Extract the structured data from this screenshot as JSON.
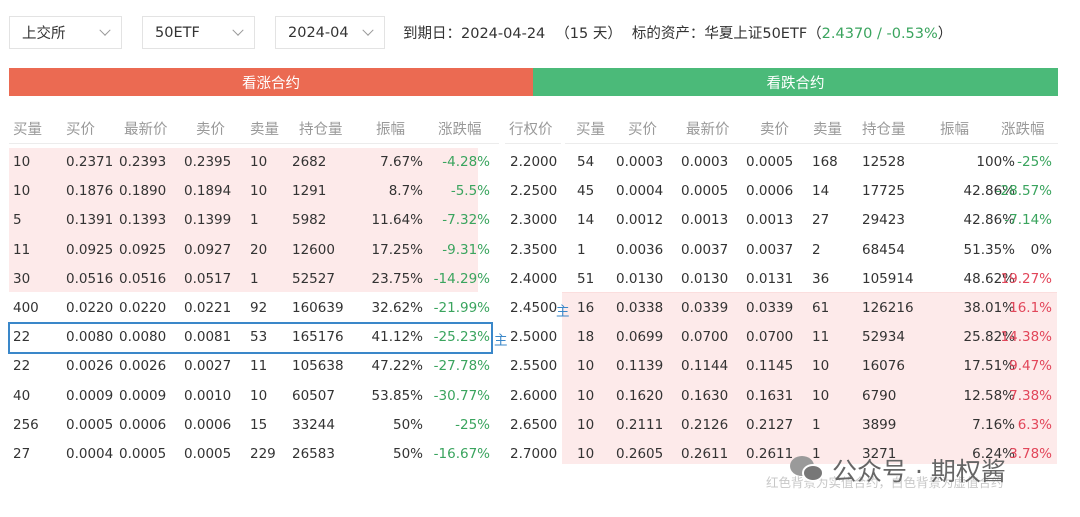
{
  "topbar": {
    "exchange": "上交所",
    "underlying": "50ETF",
    "month": "2024-04",
    "expiry_label": "到期日：",
    "expiry_date": "2024-04-24",
    "days_left": "（15 天）",
    "asset_label": "标的资产：",
    "asset_name": "华夏上证50ETF",
    "asset_quote_open": "（",
    "asset_quote": "2.4370 / -0.53%",
    "asset_quote_close": "）"
  },
  "colors": {
    "call": "#eb6a52",
    "put": "#4bba79",
    "up": "#e2465a",
    "down": "#3aa45e",
    "highlight": "#3a87c9",
    "itm_bg": "#fdeaea"
  },
  "sections": {
    "call": "看涨合约",
    "put": "看跌合约"
  },
  "columns": {
    "call": [
      "买量",
      "买价",
      "最新价",
      "卖价",
      "卖量",
      "持仓量",
      "振幅",
      "涨跌幅"
    ],
    "strike": "行权价",
    "put": [
      "买量",
      "买价",
      "最新价",
      "卖价",
      "卖量",
      "持仓量",
      "振幅",
      "涨跌幅"
    ]
  },
  "rows": [
    {
      "call": [
        "10",
        "0.2371",
        "0.2393",
        "0.2395",
        "10",
        "2682",
        "7.67%",
        "-4.28%"
      ],
      "strike": "2.2000",
      "put": [
        "54",
        "0.0003",
        "0.0003",
        "0.0005",
        "168",
        "12528",
        "100%",
        "-25%"
      ]
    },
    {
      "call": [
        "10",
        "0.1876",
        "0.1890",
        "0.1894",
        "10",
        "1291",
        "8.7%",
        "-5.5%"
      ],
      "strike": "2.2500",
      "put": [
        "45",
        "0.0004",
        "0.0005",
        "0.0006",
        "14",
        "17725",
        "42.86%",
        "-28.57%"
      ]
    },
    {
      "call": [
        "5",
        "0.1391",
        "0.1393",
        "0.1399",
        "1",
        "5982",
        "11.64%",
        "-7.32%"
      ],
      "strike": "2.3000",
      "put": [
        "14",
        "0.0012",
        "0.0013",
        "0.0013",
        "27",
        "29423",
        "42.86%",
        "-7.14%"
      ]
    },
    {
      "call": [
        "11",
        "0.0925",
        "0.0925",
        "0.0927",
        "20",
        "12600",
        "17.25%",
        "-9.31%"
      ],
      "strike": "2.3500",
      "put": [
        "1",
        "0.0036",
        "0.0037",
        "0.0037",
        "2",
        "68454",
        "51.35%",
        "0%"
      ]
    },
    {
      "call": [
        "30",
        "0.0516",
        "0.0516",
        "0.0517",
        "1",
        "52527",
        "23.75%",
        "-14.29%"
      ],
      "strike": "2.4000",
      "put": [
        "51",
        "0.0130",
        "0.0130",
        "0.0131",
        "36",
        "105914",
        "48.62%",
        "19.27%"
      ]
    },
    {
      "call": [
        "400",
        "0.0220",
        "0.0220",
        "0.0221",
        "92",
        "160639",
        "32.62%",
        "-21.99%"
      ],
      "strike": "2.4500",
      "strike_tag": "主",
      "put": [
        "16",
        "0.0338",
        "0.0339",
        "0.0339",
        "61",
        "126216",
        "38.01%",
        "16.1%"
      ]
    },
    {
      "call": [
        "22",
        "0.0080",
        "0.0080",
        "0.0081",
        "53",
        "165176",
        "41.12%",
        "-25.23%"
      ],
      "strike": "2.5000",
      "strike_tag_left": "主",
      "put": [
        "18",
        "0.0699",
        "0.0700",
        "0.0700",
        "11",
        "52934",
        "25.82%",
        "14.38%"
      ]
    },
    {
      "call": [
        "22",
        "0.0026",
        "0.0026",
        "0.0027",
        "11",
        "105638",
        "47.22%",
        "-27.78%"
      ],
      "strike": "2.5500",
      "put": [
        "10",
        "0.1139",
        "0.1144",
        "0.1145",
        "10",
        "16076",
        "17.51%",
        "9.47%"
      ]
    },
    {
      "call": [
        "40",
        "0.0009",
        "0.0009",
        "0.0010",
        "10",
        "60507",
        "53.85%",
        "-30.77%"
      ],
      "strike": "2.6000",
      "put": [
        "10",
        "0.1620",
        "0.1630",
        "0.1631",
        "10",
        "6790",
        "12.58%",
        "7.38%"
      ]
    },
    {
      "call": [
        "256",
        "0.0005",
        "0.0006",
        "0.0006",
        "15",
        "33244",
        "50%",
        "-25%"
      ],
      "strike": "2.6500",
      "put": [
        "10",
        "0.2111",
        "0.2126",
        "0.2127",
        "1",
        "3899",
        "7.16%",
        "6.3%"
      ]
    },
    {
      "call": [
        "27",
        "0.0004",
        "0.0005",
        "0.0005",
        "229",
        "26583",
        "50%",
        "-16.67%"
      ],
      "strike": "2.7000",
      "put": [
        "10",
        "0.2605",
        "0.2611",
        "0.2611",
        "1",
        "3271",
        "6.24%",
        "3.78%"
      ]
    }
  ],
  "footnote": "红色背景为实值合约，白色背景为虚值合约",
  "watermark": "公众号 · 期权酱"
}
